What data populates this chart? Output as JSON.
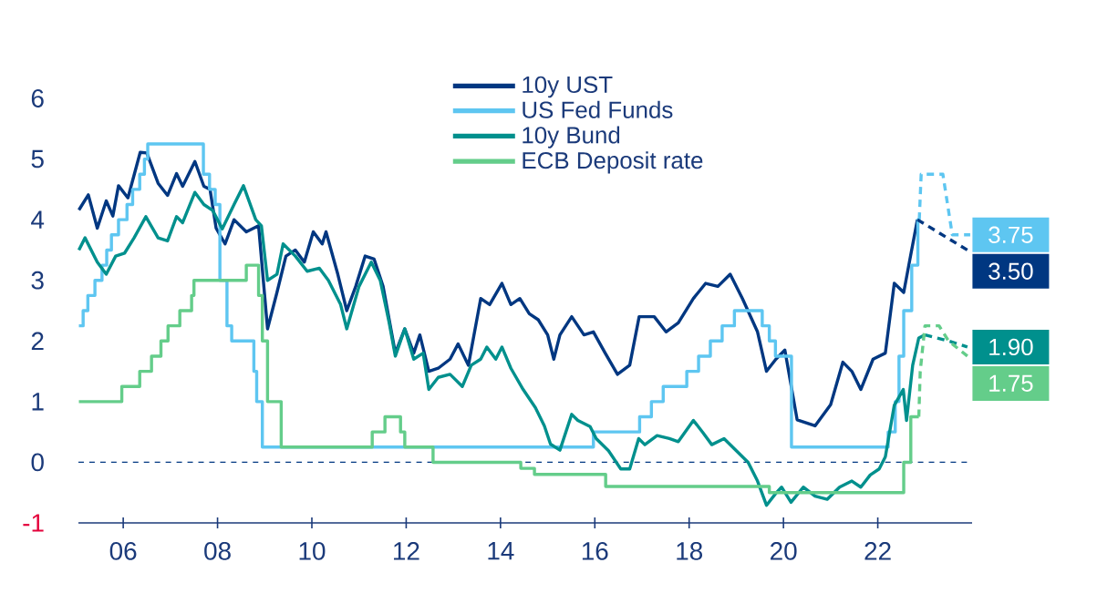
{
  "chart_data": {
    "type": "line",
    "xlim": [
      2005.05,
      2024.0
    ],
    "ylim": [
      -1,
      6
    ],
    "xticks": [
      {
        "value": 2006,
        "label": "06"
      },
      {
        "value": 2008,
        "label": "08"
      },
      {
        "value": 2010,
        "label": "10"
      },
      {
        "value": 2012,
        "label": "12"
      },
      {
        "value": 2014,
        "label": "14"
      },
      {
        "value": 2016,
        "label": "16"
      },
      {
        "value": 2018,
        "label": "18"
      },
      {
        "value": 2020,
        "label": "20"
      },
      {
        "value": 2022,
        "label": "22"
      }
    ],
    "yticks": [
      -1,
      0,
      1,
      2,
      3,
      4,
      5,
      6
    ],
    "legend": "top",
    "ref_lines": [
      {
        "axis": "y",
        "value": 0,
        "color": "#003781",
        "line_style": "dashed"
      }
    ],
    "series": [
      {
        "name": "10y UST",
        "color": "#003781",
        "x": [
          2005.06,
          2005.26,
          2005.45,
          2005.64,
          2005.78,
          2005.9,
          2006.1,
          2006.36,
          2006.5,
          2006.74,
          2006.94,
          2007.13,
          2007.26,
          2007.52,
          2007.71,
          2007.84,
          2007.97,
          2008.16,
          2008.35,
          2008.61,
          2008.87,
          2009.06,
          2009.26,
          2009.45,
          2009.65,
          2009.84,
          2010.03,
          2010.22,
          2010.3,
          2010.55,
          2010.74,
          2010.93,
          2011.13,
          2011.32,
          2011.51,
          2011.77,
          2011.97,
          2012.16,
          2012.29,
          2012.48,
          2012.68,
          2012.93,
          2013.1,
          2013.32,
          2013.58,
          2013.77,
          2014.03,
          2014.22,
          2014.41,
          2014.61,
          2014.8,
          2015.0,
          2015.13,
          2015.26,
          2015.51,
          2015.77,
          2015.97,
          2016.22,
          2016.48,
          2016.74,
          2016.94,
          2017.26,
          2017.51,
          2017.77,
          2018.09,
          2018.35,
          2018.61,
          2018.87,
          2019.13,
          2019.45,
          2019.64,
          2019.84,
          2020.03,
          2020.29,
          2020.67,
          2021.0,
          2021.26,
          2021.45,
          2021.64,
          2021.9,
          2022.16,
          2022.35,
          2022.55,
          2022.67,
          2022.84
        ],
        "values": [
          4.16,
          4.41,
          3.86,
          4.31,
          4.06,
          4.56,
          4.36,
          5.11,
          5.1,
          4.6,
          4.4,
          4.76,
          4.55,
          4.96,
          4.55,
          4.5,
          3.86,
          3.6,
          4.0,
          3.8,
          3.9,
          2.2,
          2.8,
          3.4,
          3.5,
          3.3,
          3.8,
          3.6,
          3.8,
          3.1,
          2.5,
          2.9,
          3.4,
          3.35,
          2.9,
          1.8,
          2.2,
          1.8,
          2.1,
          1.5,
          1.55,
          1.7,
          1.95,
          1.6,
          2.7,
          2.6,
          2.95,
          2.6,
          2.7,
          2.45,
          2.35,
          2.1,
          1.7,
          2.1,
          2.4,
          2.1,
          2.15,
          1.8,
          1.45,
          1.6,
          2.4,
          2.4,
          2.15,
          2.3,
          2.7,
          2.95,
          2.9,
          3.1,
          2.7,
          2.15,
          1.5,
          1.7,
          1.85,
          0.7,
          0.6,
          0.95,
          1.65,
          1.5,
          1.2,
          1.7,
          1.8,
          2.95,
          2.8,
          3.3,
          4.0
        ]
      },
      {
        "name": "US Fed Funds",
        "color": "#5ec6f1",
        "type": "step",
        "x": [
          2005.06,
          2005.15,
          2005.25,
          2005.4,
          2005.55,
          2005.65,
          2005.75,
          2005.9,
          2006.08,
          2006.2,
          2006.35,
          2006.45,
          2006.52,
          2007.7,
          2007.83,
          2007.95,
          2008.05,
          2008.2,
          2008.3,
          2008.77,
          2008.83,
          2008.95,
          2015.97,
          2016.95,
          2017.2,
          2017.45,
          2017.95,
          2018.2,
          2018.45,
          2018.7,
          2018.96,
          2019.55,
          2019.7,
          2019.83,
          2020.17,
          2022.22,
          2022.37,
          2022.45,
          2022.55,
          2022.72,
          2022.85,
          2022.88
        ],
        "values": [
          2.25,
          2.5,
          2.75,
          3.0,
          3.25,
          3.5,
          3.75,
          4.0,
          4.25,
          4.5,
          4.75,
          5.0,
          5.25,
          4.75,
          4.5,
          4.25,
          3.0,
          2.25,
          2.0,
          1.5,
          1.0,
          0.25,
          0.5,
          0.75,
          1.0,
          1.25,
          1.5,
          1.75,
          2.0,
          2.25,
          2.5,
          2.25,
          2.0,
          1.75,
          0.25,
          0.5,
          1.0,
          1.75,
          2.5,
          3.25,
          4.0,
          4.0
        ]
      },
      {
        "name": "10y Bund",
        "color": "#00908d",
        "x": [
          2005.06,
          2005.19,
          2005.45,
          2005.64,
          2005.84,
          2006.03,
          2006.23,
          2006.48,
          2006.74,
          2006.94,
          2007.13,
          2007.26,
          2007.52,
          2007.71,
          2007.9,
          2008.1,
          2008.35,
          2008.55,
          2008.81,
          2008.93,
          2009.06,
          2009.26,
          2009.39,
          2009.65,
          2009.9,
          2010.16,
          2010.35,
          2010.61,
          2010.74,
          2011.0,
          2011.26,
          2011.45,
          2011.64,
          2011.77,
          2011.97,
          2012.16,
          2012.36,
          2012.48,
          2012.68,
          2012.93,
          2013.19,
          2013.38,
          2013.58,
          2013.71,
          2013.9,
          2014.03,
          2014.22,
          2014.48,
          2014.74,
          2014.93,
          2015.06,
          2015.26,
          2015.51,
          2015.64,
          2015.9,
          2016.03,
          2016.29,
          2016.55,
          2016.74,
          2016.93,
          2017.06,
          2017.32,
          2017.58,
          2017.77,
          2018.09,
          2018.29,
          2018.48,
          2018.74,
          2019.0,
          2019.25,
          2019.45,
          2019.64,
          2019.84,
          2019.96,
          2020.16,
          2020.42,
          2020.67,
          2020.93,
          2021.19,
          2021.45,
          2021.64,
          2021.84,
          2022.03,
          2022.16,
          2022.35,
          2022.54,
          2022.61,
          2022.74,
          2022.87,
          2023.0
        ],
        "values": [
          3.5,
          3.7,
          3.3,
          3.1,
          3.4,
          3.45,
          3.7,
          4.05,
          3.7,
          3.65,
          4.05,
          3.95,
          4.45,
          4.25,
          4.15,
          3.85,
          4.25,
          4.56,
          4.0,
          3.9,
          3.0,
          3.1,
          3.6,
          3.4,
          3.15,
          3.2,
          3.0,
          2.6,
          2.2,
          2.9,
          3.3,
          3.0,
          2.3,
          1.75,
          2.2,
          1.7,
          1.8,
          1.2,
          1.4,
          1.45,
          1.25,
          1.6,
          1.7,
          1.9,
          1.7,
          1.9,
          1.55,
          1.2,
          0.9,
          0.6,
          0.3,
          0.2,
          0.79,
          0.69,
          0.59,
          0.39,
          0.19,
          -0.11,
          -0.11,
          0.39,
          0.29,
          0.44,
          0.39,
          0.34,
          0.69,
          0.49,
          0.29,
          0.39,
          0.19,
          0.0,
          -0.31,
          -0.71,
          -0.51,
          -0.41,
          -0.66,
          -0.41,
          -0.56,
          -0.61,
          -0.41,
          -0.31,
          -0.41,
          -0.21,
          -0.11,
          0.09,
          0.94,
          1.2,
          0.69,
          1.6,
          2.05,
          2.1
        ]
      },
      {
        "name": "ECB Deposit rate",
        "color": "#64cd8a",
        "type": "step",
        "x": [
          2005.06,
          2005.97,
          2006.35,
          2006.6,
          2006.8,
          2006.95,
          2007.2,
          2007.45,
          2007.5,
          2008.61,
          2008.87,
          2008.95,
          2009.06,
          2009.1,
          2009.35,
          2011.28,
          2011.55,
          2011.88,
          2011.97,
          2012.57,
          2014.43,
          2014.72,
          2016.23,
          2019.7,
          2022.48,
          2022.55,
          2022.7,
          2022.87
        ],
        "values": [
          1.0,
          1.25,
          1.5,
          1.75,
          2.0,
          2.25,
          2.5,
          2.75,
          3.0,
          3.25,
          2.75,
          2.0,
          1.0,
          1.0,
          0.25,
          0.5,
          0.75,
          0.5,
          0.25,
          0.0,
          -0.1,
          -0.2,
          -0.4,
          -0.5,
          -0.5,
          0.0,
          0.75,
          0.75
        ]
      },
      {
        "color": "#5ec6f1",
        "line_style": "dashed",
        "x": [
          2022.88,
          2022.92,
          2023.38,
          2023.58,
          2023.96
        ],
        "values": [
          4.0,
          4.75,
          4.75,
          3.75,
          3.75
        ],
        "value_labels": [
          null,
          null,
          null,
          null,
          "3.75"
        ]
      },
      {
        "color": "#003781",
        "line_style": "dashed",
        "x": [
          2022.84,
          2023.9
        ],
        "values": [
          4.0,
          3.5
        ],
        "value_labels": [
          null,
          "3.50"
        ]
      },
      {
        "color": "#00908d",
        "line_style": "dashed",
        "x": [
          2023.0,
          2023.5,
          2023.9
        ],
        "values": [
          2.1,
          2.0,
          1.9
        ],
        "value_labels": [
          null,
          null,
          "1.90"
        ]
      },
      {
        "color": "#64cd8a",
        "line_style": "dashed",
        "x": [
          2022.87,
          2022.9,
          2023.0,
          2023.3,
          2023.5,
          2023.9
        ],
        "values": [
          0.75,
          1.5,
          2.25,
          2.25,
          2.0,
          1.75
        ],
        "value_labels": [
          null,
          null,
          null,
          null,
          null,
          "1.75"
        ]
      }
    ]
  }
}
